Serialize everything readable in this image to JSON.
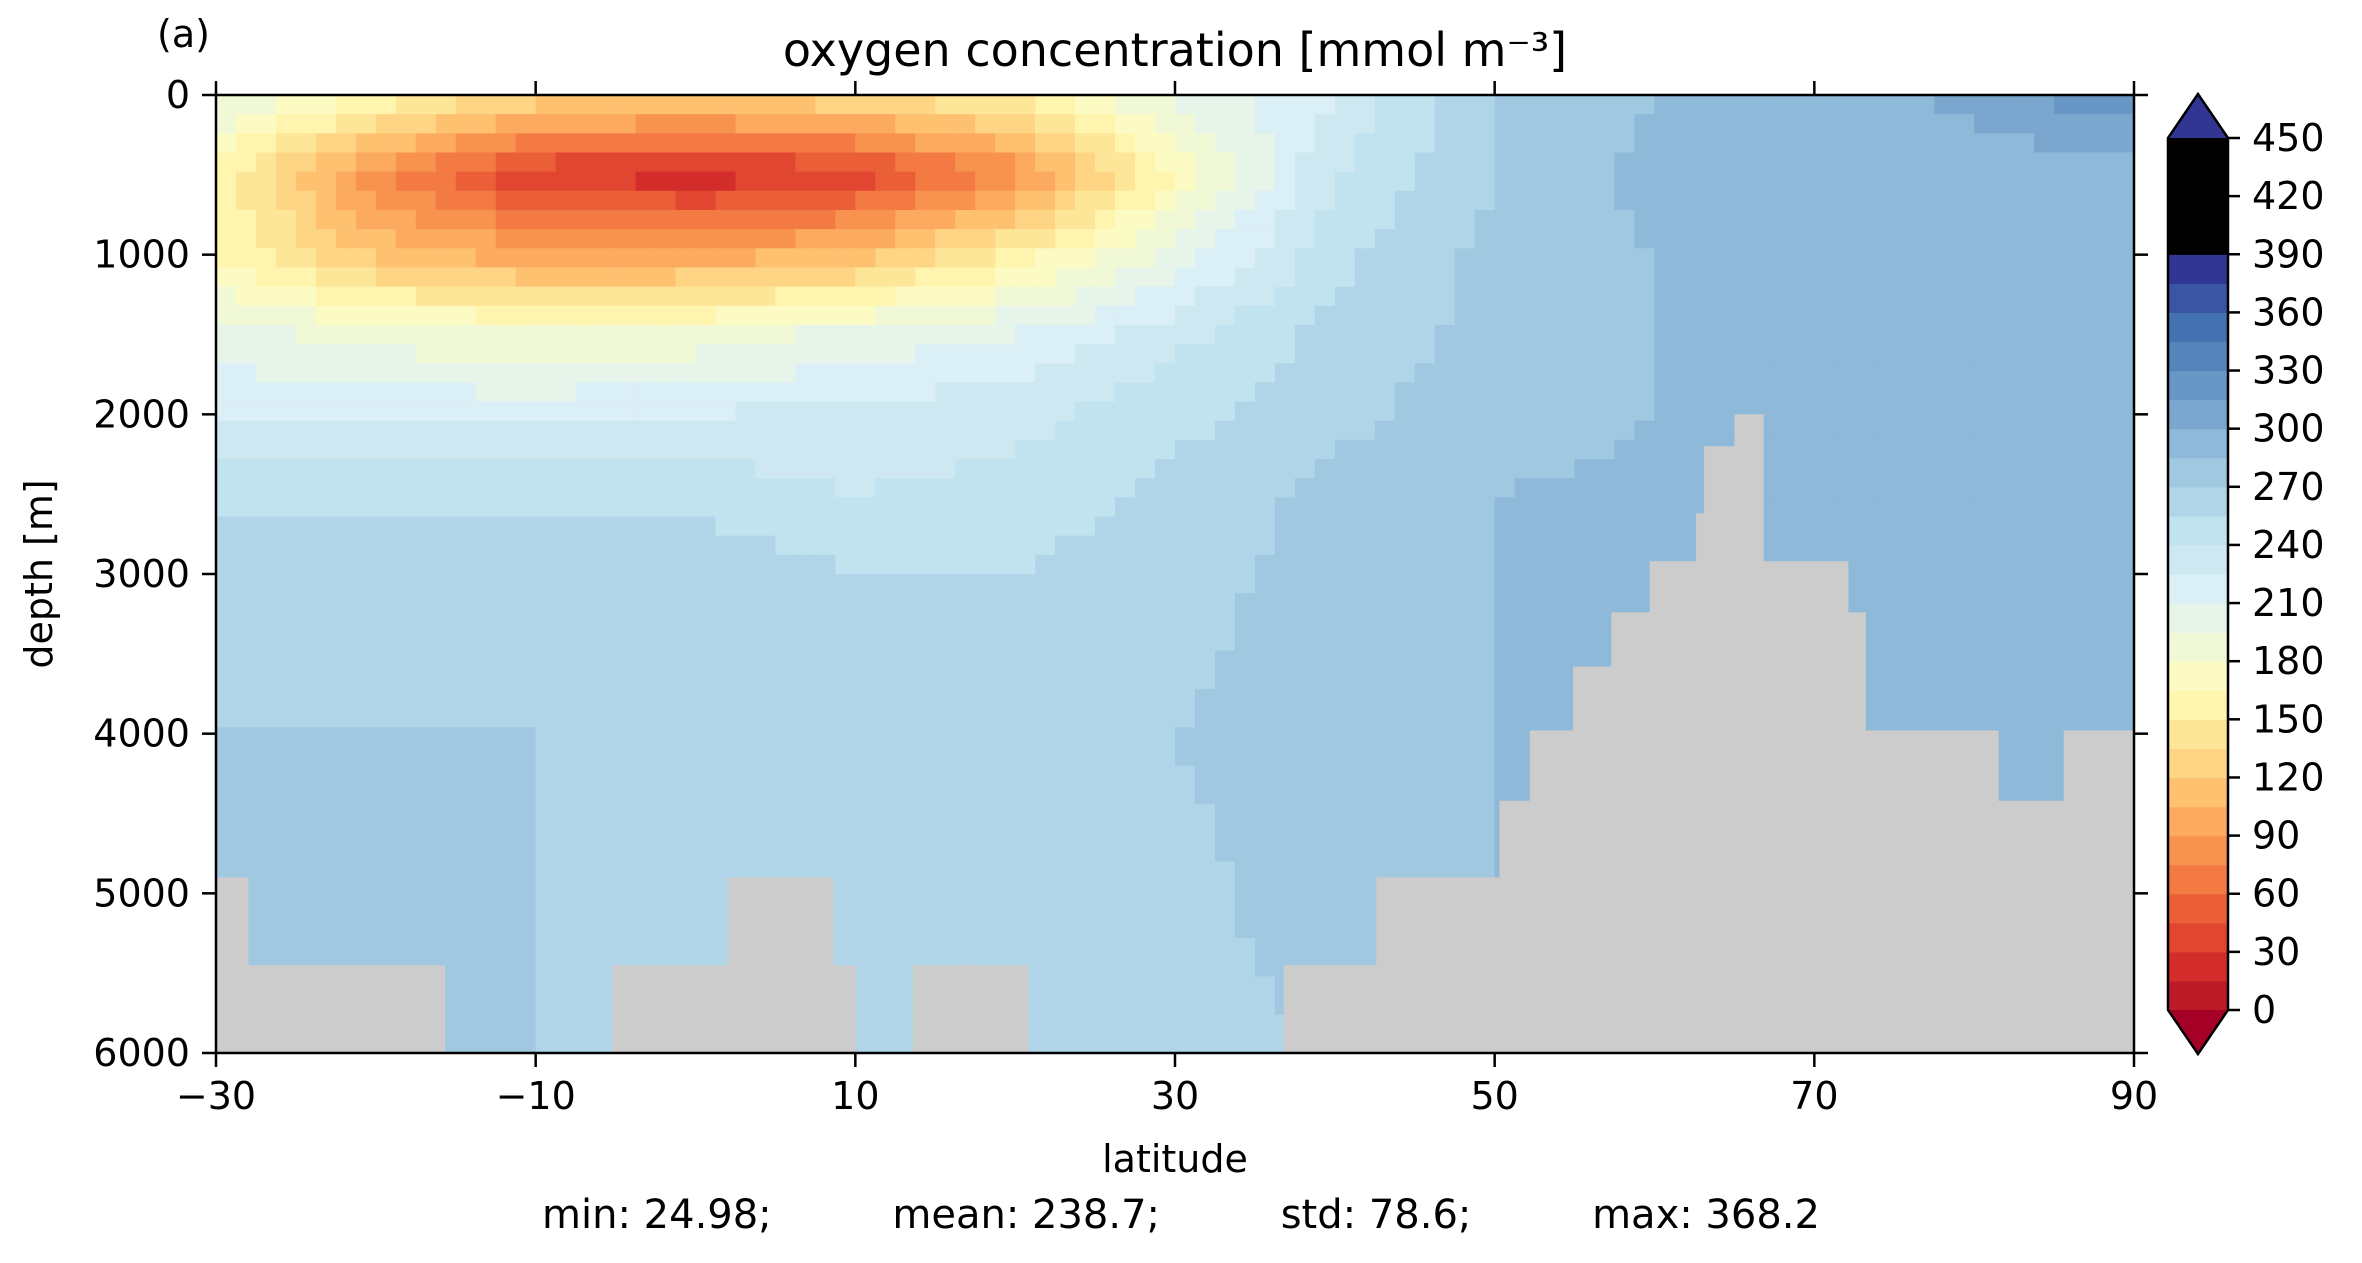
{
  "panel_label": "(a)",
  "stats": {
    "min": "min: 24.98;",
    "mean": "mean: 238.7;",
    "std": "std: 78.6;",
    "max": "max: 368.2"
  },
  "colors": {
    "land": "#cccccc",
    "levels": [
      "#a50026",
      "#bd1a28",
      "#d22d2a",
      "#e04630",
      "#ea5f38",
      "#f47a43",
      "#f8934f",
      "#fbaa5f",
      "#fdc170",
      "#fed584",
      "#fee698",
      "#fff5ae",
      "#fbfbc3",
      "#f1f8d5",
      "#e6f4ea",
      "#dbeff6",
      "#cee8f2",
      "#c1e3ef",
      "#b1d5e8",
      "#a1c8e1",
      "#8fb9d9",
      "#7ba7cf",
      "#6896c5",
      "#5584bb",
      "#4472b1",
      "#3a55a3",
      "#313695"
    ]
  },
  "chart_data": {
    "type": "heatmap",
    "title": "oxygen concentration [mmol m⁻³]",
    "xlabel": "latitude",
    "ylabel": "depth [m]",
    "xlim": [
      -30,
      90
    ],
    "ylim": [
      6000,
      0
    ],
    "xticks": [
      -30,
      -10,
      10,
      30,
      50,
      70,
      90
    ],
    "xtick_labels": [
      "−30",
      "−10",
      "10",
      "30",
      "50",
      "70",
      "90"
    ],
    "yticks": [
      0,
      1000,
      2000,
      3000,
      4000,
      5000,
      6000
    ],
    "colorbar": {
      "min": 0,
      "max": 450,
      "step": 15,
      "extend": "both",
      "ticks": [
        0,
        30,
        60,
        90,
        120,
        150,
        180,
        210,
        240,
        270,
        300,
        330,
        360,
        390,
        420,
        450
      ]
    },
    "data_grid_lat": [
      -30,
      -20,
      -10,
      0,
      10,
      20,
      30,
      40,
      50,
      60,
      70,
      80,
      90
    ],
    "data_grid_depth": [
      0,
      500,
      1000,
      1500,
      2000,
      2500,
      3000,
      4000,
      5000,
      6000
    ],
    "values": [
      [
        215,
        180,
        145,
        140,
        150,
        170,
        215,
        240,
        285,
        300,
        305,
        320,
        345
      ],
      [
        175,
        95,
        45,
        35,
        50,
        95,
        180,
        255,
        285,
        305,
        305,
        305,
        305
      ],
      [
        180,
        130,
        110,
        110,
        125,
        170,
        215,
        265,
        290,
        300,
        305,
        305,
        305
      ],
      [
        215,
        205,
        195,
        200,
        215,
        225,
        250,
        275,
        290,
        300,
        305,
        305,
        305
      ],
      [
        240,
        235,
        235,
        240,
        245,
        250,
        265,
        280,
        295,
        300,
        305,
        305,
        305
      ],
      [
        265,
        265,
        265,
        265,
        255,
        260,
        275,
        290,
        300,
        302,
        305,
        305,
        305
      ],
      [
        280,
        280,
        280,
        280,
        270,
        270,
        280,
        290,
        300,
        302,
        305,
        305,
        305
      ],
      [
        285,
        285,
        285,
        282,
        275,
        275,
        285,
        292,
        300,
        302,
        305,
        305,
        305
      ],
      [
        290,
        290,
        285,
        282,
        280,
        280,
        282,
        290,
        300,
        302,
        305,
        305,
        305
      ],
      [
        290,
        290,
        285,
        282,
        282,
        282,
        282,
        285,
        290,
        300,
        305,
        305,
        305
      ]
    ],
    "land_profile": [
      {
        "lat": -30.0,
        "depth": 4900
      },
      {
        "lat": -28.0,
        "depth": 5450
      },
      {
        "lat": -15.7,
        "depth": 6000
      },
      {
        "lat": -5.2,
        "depth": 5450
      },
      {
        "lat": 2.0,
        "depth": 4900
      },
      {
        "lat": 8.6,
        "depth": 5450
      },
      {
        "lat": 10.0,
        "depth": 6000
      },
      {
        "lat": 13.6,
        "depth": 5450
      },
      {
        "lat": 20.8,
        "depth": 6000
      },
      {
        "lat": 36.8,
        "depth": 5450
      },
      {
        "lat": 42.6,
        "depth": 4900
      },
      {
        "lat": 50.3,
        "depth": 4420
      },
      {
        "lat": 52.2,
        "depth": 3980
      },
      {
        "lat": 54.9,
        "depth": 3580
      },
      {
        "lat": 57.3,
        "depth": 3240
      },
      {
        "lat": 59.7,
        "depth": 2920
      },
      {
        "lat": 62.6,
        "depth": 2620
      },
      {
        "lat": 63.1,
        "depth": 2200
      },
      {
        "lat": 65.0,
        "depth": 2000
      },
      {
        "lat": 66.8,
        "depth": 2920
      },
      {
        "lat": 72.1,
        "depth": 3240
      },
      {
        "lat": 73.2,
        "depth": 3980
      },
      {
        "lat": 81.5,
        "depth": 4420
      },
      {
        "lat": 85.6,
        "depth": 3980
      }
    ]
  }
}
